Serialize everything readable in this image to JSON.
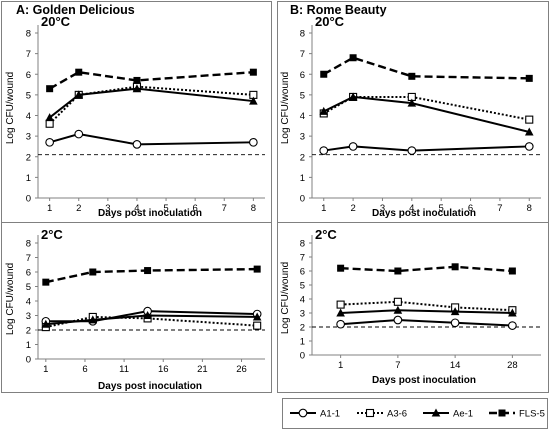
{
  "figure": {
    "panel_a_label": "A: Golden Delicious",
    "panel_b_label": "B: Rome Beauty",
    "ylabel": "Log CFU/wound",
    "xlabel": "Days post inoculation"
  },
  "legend": {
    "entries": [
      "A1-1",
      "A3-6",
      "Ae-1",
      "FLS-5"
    ]
  },
  "series_styles": [
    {
      "name": "A1-1",
      "marker": "circle-open",
      "dash": "solid",
      "color": "#000000"
    },
    {
      "name": "A3-6",
      "marker": "square-open",
      "dash": "dotted",
      "color": "#000000"
    },
    {
      "name": "Ae-1",
      "marker": "triangle-filled",
      "dash": "solid",
      "color": "#000000"
    },
    {
      "name": "FLS-5",
      "marker": "square-filled",
      "dash": "dashed",
      "color": "#000000"
    }
  ],
  "chart_data": [
    {
      "id": "A20",
      "type": "line",
      "title": "20°C",
      "x_ticks": [
        1,
        2,
        3,
        4,
        5,
        6,
        7,
        8
      ],
      "xlim": [
        0.6,
        8.4
      ],
      "ylim": [
        0,
        8
      ],
      "y_ticks": [
        0,
        1,
        2,
        3,
        4,
        5,
        6,
        7,
        8
      ],
      "reference_line_y": 2.1,
      "series": [
        {
          "name": "A1-1",
          "x": [
            1,
            2,
            4,
            8
          ],
          "y": [
            2.7,
            3.1,
            2.6,
            2.7
          ]
        },
        {
          "name": "A3-6",
          "x": [
            1,
            2,
            4,
            8
          ],
          "y": [
            3.6,
            5.0,
            5.4,
            5.0
          ]
        },
        {
          "name": "Ae-1",
          "x": [
            1,
            2,
            4,
            8
          ],
          "y": [
            3.9,
            5.0,
            5.3,
            4.7
          ]
        },
        {
          "name": "FLS-5",
          "x": [
            1,
            2,
            4,
            8
          ],
          "y": [
            5.3,
            6.1,
            5.7,
            6.1
          ]
        }
      ]
    },
    {
      "id": "B20",
      "type": "line",
      "title": "20°C",
      "x_ticks": [
        1,
        2,
        3,
        4,
        5,
        6,
        7,
        8
      ],
      "xlim": [
        0.6,
        8.4
      ],
      "ylim": [
        0,
        8
      ],
      "y_ticks": [
        0,
        1,
        2,
        3,
        4,
        5,
        6,
        7,
        8
      ],
      "reference_line_y": 2.1,
      "series": [
        {
          "name": "A1-1",
          "x": [
            1,
            2,
            4,
            8
          ],
          "y": [
            2.3,
            2.5,
            2.3,
            2.5
          ]
        },
        {
          "name": "A3-6",
          "x": [
            1,
            2,
            4,
            8
          ],
          "y": [
            4.1,
            4.9,
            4.9,
            3.8
          ]
        },
        {
          "name": "Ae-1",
          "x": [
            1,
            2,
            4,
            8
          ],
          "y": [
            4.2,
            4.9,
            4.6,
            3.2
          ]
        },
        {
          "name": "FLS-5",
          "x": [
            1,
            2,
            4,
            8
          ],
          "y": [
            6.0,
            6.8,
            5.9,
            5.8
          ]
        }
      ]
    },
    {
      "id": "A2",
      "type": "line",
      "title": "2°C",
      "x_ticks": [
        1,
        6,
        11,
        16,
        21,
        26
      ],
      "xlim": [
        0,
        29
      ],
      "ylim": [
        0,
        8
      ],
      "y_ticks": [
        0,
        1,
        2,
        3,
        4,
        5,
        6,
        7,
        8
      ],
      "reference_line_y": 2.0,
      "series": [
        {
          "name": "A1-1",
          "x": [
            1,
            7,
            14,
            28
          ],
          "y": [
            2.6,
            2.6,
            3.3,
            3.1
          ]
        },
        {
          "name": "A3-6",
          "x": [
            1,
            7,
            14,
            28
          ],
          "y": [
            2.2,
            2.9,
            2.8,
            2.3
          ]
        },
        {
          "name": "Ae-1",
          "x": [
            1,
            7,
            14,
            28
          ],
          "y": [
            2.4,
            2.7,
            3.0,
            2.9
          ]
        },
        {
          "name": "FLS-5",
          "x": [
            1,
            7,
            14,
            28
          ],
          "y": [
            5.3,
            6.0,
            6.1,
            6.2
          ]
        }
      ]
    },
    {
      "id": "B2",
      "type": "line",
      "title": "2°C",
      "categories": [
        "1",
        "7",
        "14",
        "28"
      ],
      "ylim": [
        0,
        8
      ],
      "y_ticks": [
        0,
        1,
        2,
        3,
        4,
        5,
        6,
        7,
        8
      ],
      "reference_line_y": 2.0,
      "series": [
        {
          "name": "A1-1",
          "y": [
            2.2,
            2.5,
            2.3,
            2.1
          ]
        },
        {
          "name": "A3-6",
          "y": [
            3.6,
            3.8,
            3.4,
            3.2
          ]
        },
        {
          "name": "Ae-1",
          "y": [
            3.0,
            3.2,
            3.1,
            3.0
          ]
        },
        {
          "name": "FLS-5",
          "y": [
            6.2,
            6.0,
            6.3,
            6.0
          ]
        }
      ]
    }
  ]
}
